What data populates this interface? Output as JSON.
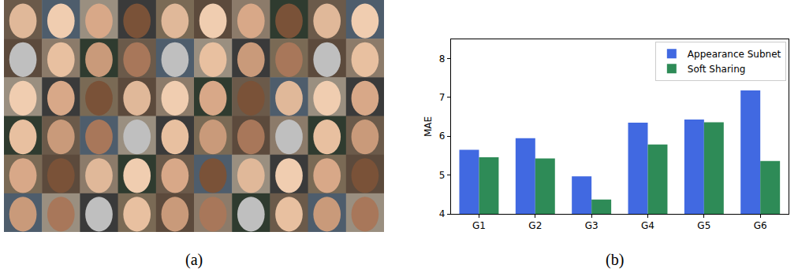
{
  "chart_data": {
    "type": "bar",
    "categories": [
      "G1",
      "G2",
      "G3",
      "G4",
      "G5",
      "G6"
    ],
    "series": [
      {
        "name": "Appearance Subnet",
        "color": "#4169e1",
        "values": [
          5.65,
          5.95,
          4.97,
          6.35,
          6.43,
          7.18
        ]
      },
      {
        "name": "Soft Sharing",
        "color": "#2e8b57",
        "values": [
          5.46,
          5.43,
          4.37,
          5.79,
          6.36,
          5.36
        ]
      }
    ],
    "y_label": "MAE",
    "ylim": [
      4,
      8.5
    ],
    "yticks": [
      4,
      5,
      6,
      7,
      8
    ],
    "legend": "upper right",
    "grid": false
  },
  "panel_labels": [
    "(a)",
    "(b)"
  ]
}
